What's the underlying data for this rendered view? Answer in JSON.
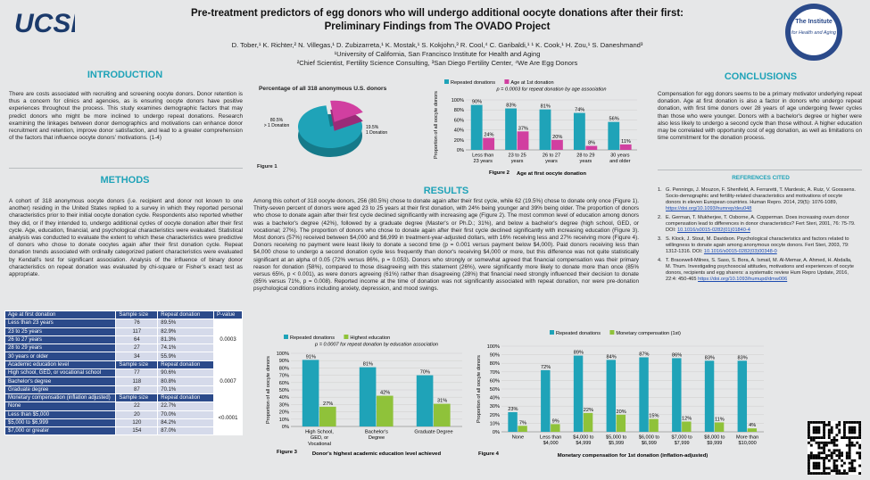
{
  "header": {
    "title_line1": "Pre-treatment predictors of egg donors who will undergo additional oocyte donations after their first:",
    "title_line2": "Preliminary Findings from The OVADO Project",
    "authors": "D. Tober,¹ K. Richter,² N. Villegas,¹ D. Zubizarreta,¹ K. Mostak,¹ S. Kokjohn,³ R. Cool,⁴ C. Garibaldi,¹ ¹ K. Cook,¹ H. Zou,¹ S. Daneshmand³",
    "affiliation1": "¹University of California, San Francisco Institute for Health and Aging",
    "affiliation2": "²Chief Scientist, Fertility Science Consulting, ³San Diego Fertility Center, ⁴We Are Egg Donors",
    "logo_left": "UCSF",
    "logo_right_line1": "The Institute",
    "logo_right_line2": "for Health and Aging"
  },
  "introduction": {
    "heading": "INTRODUCTION",
    "text": "There are costs associated with recruiting and screening oocyte donors. Donor retention is thus a concern for clinics and agencies, as is ensuring oocyte donors have positive experiences throughout the process. This study examines demographic factors that may predict donors who might be more inclined to undergo repeat donations. Research examining the linkages between donor demographics and motivations can enhance donor recruitment and retention, improve donor satisfaction, and lead to a greater comprehension of the factors that influence oocyte donors’ motivations. (1-4)"
  },
  "methods": {
    "heading": "METHODS",
    "text": "A cohort of 318 anonymous oocyte donors (i.e. recipient and donor not known to one another) residing in the United States replied to a survey in which they reported personal characteristics prior to their initial oocyte donation cycle. Respondents also reported whether they did, or if they intended to, undergo additional cycles of oocyte donation after their first cycle. Age, education, financial, and psychological characteristics were evaluated. Statistical analysis was conducted to evaluate the extent to which these characteristics were predictive of donors who chose to donate oocytes again after their first donation cycle. Repeat donation trends associated with ordinally categorized patient characteristics were evaluated by Kendall’s test for significant association. Analysis of the influence of binary donor characteristics on repeat donation was evaluated by chi-square or Fisher’s exact test as appropriate."
  },
  "table": {
    "groups": [
      {
        "header": [
          "Age at first donation",
          "Sample size",
          "Repeat donation",
          "P-value"
        ],
        "rows": [
          [
            "Less than 23 years",
            "76",
            "89.5%"
          ],
          [
            "23 to 25 years",
            "117",
            "82.9%"
          ],
          [
            "26 to 27 years",
            "64",
            "81.3%"
          ],
          [
            "28 to 29 years",
            "27",
            "74.1%"
          ],
          [
            "30 years or older",
            "34",
            "55.9%"
          ]
        ],
        "pvalue": "0.0003"
      },
      {
        "header": [
          "Academic education level",
          "Sample size",
          "Repeat donation"
        ],
        "rows": [
          [
            "High school, GED, or vocational school",
            "77",
            "90.6%"
          ],
          [
            "Bachelor's degree",
            "118",
            "80.8%"
          ],
          [
            "Graduate degree",
            "87",
            "70.1%"
          ]
        ],
        "pvalue": "0.0007"
      },
      {
        "header": [
          "Monetary compensation (inflation adjusted)",
          "Sample size",
          "Repeat donation"
        ],
        "rows": [
          [
            "None",
            "22",
            "22.7%"
          ],
          [
            "Less than $5,000",
            "20",
            "70.0%"
          ],
          [
            "$5,000 to $6,999",
            "120",
            "84.2%"
          ],
          [
            "$7,000 or greater",
            "154",
            "87.0%"
          ]
        ],
        "pvalue": "<0.0001"
      }
    ]
  },
  "figures": {
    "fig1_label": "Figure 1",
    "fig2_label": "Figure 2",
    "fig3_label": "Figure 3",
    "fig4_label": "Figure 4"
  },
  "chart_data": [
    {
      "type": "pie",
      "title": "Percentage of all 318 anonymous U.S. donors",
      "slices": [
        {
          "label": "80.5% > 1 Donation",
          "value": 80.5,
          "color": "#1fa3b8"
        },
        {
          "label": "19.5% 1 Donation",
          "value": 19.5,
          "color": "#d13fa0"
        }
      ]
    },
    {
      "type": "bar",
      "title": "p = 0.0003 for repeat donation by age association",
      "categories": [
        "Less than 23 years",
        "23 to 25 years",
        "26 to 27 years",
        "28 to 29 years",
        "30 years and older"
      ],
      "series": [
        {
          "name": "Repeated donations",
          "values": [
            90,
            83,
            81,
            74,
            56
          ],
          "labels": [
            "90%",
            "83%",
            "81%",
            "74%",
            "56%"
          ],
          "color": "#1fa3b8"
        },
        {
          "name": "Age at 1st donation",
          "values": [
            24,
            37,
            20,
            8,
            11
          ],
          "labels": [
            "24%",
            "37%",
            "20%",
            "8%",
            "11%"
          ],
          "color": "#d13fa0"
        }
      ],
      "xlabel": "Age at first oocyte donation",
      "ylabel": "Proportion of all oocyte donors",
      "yticks": [
        "0%",
        "20%",
        "40%",
        "60%",
        "80%",
        "100%"
      ],
      "ylim": [
        0,
        100
      ]
    },
    {
      "type": "bar",
      "title": "p = 0.0007 for repeat donation by education association",
      "categories": [
        "High School, GED, or Vocational",
        "Bachelor's Degree",
        "Graduate Degree"
      ],
      "series": [
        {
          "name": "Repeated donations",
          "values": [
            91,
            81,
            70
          ],
          "labels": [
            "91%",
            "81%",
            "70%"
          ],
          "color": "#1fa3b8"
        },
        {
          "name": "Highest education",
          "values": [
            27,
            42,
            31
          ],
          "labels": [
            "27%",
            "42%",
            "31%"
          ],
          "color": "#8fc23a"
        }
      ],
      "xlabel": "Donor's highest academic education level achieved",
      "ylabel": "Proportion of all oocyte donors",
      "yticks": [
        "0%",
        "10%",
        "20%",
        "30%",
        "40%",
        "50%",
        "60%",
        "70%",
        "80%",
        "90%",
        "100%"
      ],
      "ylim": [
        0,
        100
      ]
    },
    {
      "type": "bar",
      "title": "",
      "categories": [
        "None",
        "Less than $4,000",
        "$4,000 to $4,999",
        "$5,000 to $5,999",
        "$6,000 to $6,999",
        "$7,000 to $7,999",
        "$8,000 to $9,999",
        "More than $10,000"
      ],
      "series": [
        {
          "name": "Repeated donations",
          "values": [
            23,
            72,
            89,
            84,
            87,
            86,
            83,
            83
          ],
          "labels": [
            "23%",
            "72%",
            "89%",
            "84%",
            "87%",
            "86%",
            "83%",
            "83%"
          ],
          "color": "#1fa3b8"
        },
        {
          "name": "Monetary compensation (1st)",
          "values": [
            7,
            9,
            22,
            20,
            15,
            12,
            11,
            4
          ],
          "labels": [
            "7%",
            "9%",
            "22%",
            "20%",
            "15%",
            "12%",
            "11%",
            "4%"
          ],
          "color": "#8fc23a"
        }
      ],
      "xlabel": "Monetary compensation for 1st donation (inflation-adjusted)",
      "ylabel": "Proportion of all oocyte donors",
      "yticks": [
        "0%",
        "10%",
        "20%",
        "30%",
        "40%",
        "50%",
        "60%",
        "70%",
        "80%",
        "90%",
        "100%"
      ],
      "ylim": [
        0,
        100
      ]
    }
  ],
  "results": {
    "heading": "RESULTS",
    "text": "Among this cohort of 318 oocyte donors, 256 (80.5%) chose to donate again after their first cycle, while 62 (19.5%) chose to donate only once (Figure 1). Thirty-seven percent of donors were aged 23 to 25 years at their first donation, with 24% being younger and 39% being older. The proportion of donors who chose to donate again after their first cycle declined significantly with increasing age (Figure 2). The most common level of education among donors was a bachelor's degree (42%), followed by a graduate degree (Master's or Ph.D.; 31%), and below a bachelor's degree (high school, GED, or vocational; 27%). The proportion of donors who chose to donate again after their first cycle declined significantly with increasing education (Figure 3). Most donors (57%) received between $4,000 and $6,999 in treatment-year-adjusted dollars, with 16% receiving less and 27% receiving more (Figure 4). Donors receiving no payment were least likely to donate a second time (p = 0.001 versus payment below $4,000). Paid donors receiving less than $4,000 chose to undergo a second donation cycle less frequently than donor's receiving $4,000 or more, but this difference was not quite statistically significant at an alpha of 0.05 (72% versus 86%, p = 0.053). Donors who strongly or somewhat agreed that financial compensation was their primary reason for donation (58%), compared to those disagreeing with this statement (26%), were significantly more likely to donate more than once (85% versus 65%, p < 0.001), as were donors agreeing (61%) rather than disagreeing (28%) that financial need strongly influenced their decision to donate (85% versus 71%, p = 0.008). Reported income at the time of donation was not significantly associated with repeat donation, nor were pre-donation psychological conditions including anxiety, depression, and mood swings."
  },
  "conclusions": {
    "heading": "CONCLUSIONS",
    "text": "Compensation for egg donors seems to be a primary motivator underlying repeat donation.  Age at first donation is also a factor in donors who undergo repeat donation, with first time donors over 28 years of age undergoing fewer cycles than those who were younger. Donors with a bachelor's degree or higher were also less likely to undergo a second cycle than those without. A higher education may be correlated with opportunity cost of egg donation, as well as limitations on time commitment for the donation process."
  },
  "references": {
    "heading": "REFERENCES CITED",
    "items": [
      {
        "num": "1.",
        "text": "G. Pennings, J. Mouzon, F. Shenfield, A. Ferraretti, T. Mardesic, A. Ruiz, V. Goossens. Socio-demographic and fertility-related characteristics and motivations of oocyte donors in eleven European countries. Human Repro. 2014, 29(5): 1076-1089,",
        "link": "https://doi.org/10.1093/humrep/deu048"
      },
      {
        "num": "2.",
        "text": "E. German, T. Mukherjee, T. Osborne, A. Copperman. Does increasing ovum donor compensation lead to differences in donor characteristics? Fert Steri, 2001, 76: 75-79. DOI:",
        "link": "10.1016/s0015-0282(01)01840-4"
      },
      {
        "num": "3.",
        "text": "S. Klock, J. Stout, M. Davidson. Psychological characteristics and factors related to willingness to donate again among anonymous oocyte donors. Fert Steri, 2003, 79: 1312-1316. DOI:",
        "link": "10.1016/s0015-0282(03)00348-0"
      },
      {
        "num": "4.",
        "text": "T. Bracewell-Milnes, S. Saso, S. Bora, A. Ismail, M. Al-Memar, A. Ahmed, H. Abdalla, M. Thum.  Investigating psychosocial attitudes, motivations and experiences of oocyte donors, recipients and egg sharers: a systematic review Hum Repro Update, 2016, 22:4: 450-465",
        "link": "https://doi.org/10.1093/humupd/dmw006"
      }
    ]
  }
}
